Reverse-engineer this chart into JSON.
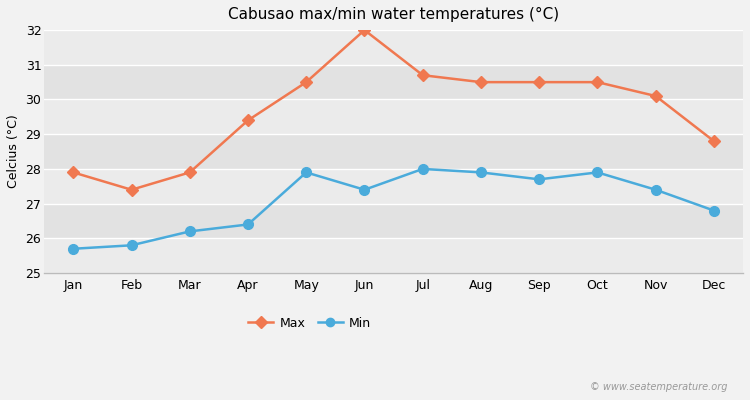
{
  "months": [
    "Jan",
    "Feb",
    "Mar",
    "Apr",
    "May",
    "Jun",
    "Jul",
    "Aug",
    "Sep",
    "Oct",
    "Nov",
    "Dec"
  ],
  "max_temps": [
    27.9,
    27.4,
    27.9,
    29.4,
    30.5,
    32.0,
    30.7,
    30.5,
    30.5,
    30.5,
    30.1,
    28.8
  ],
  "min_temps": [
    25.7,
    25.8,
    26.2,
    26.4,
    27.9,
    27.4,
    28.0,
    27.9,
    27.7,
    27.9,
    27.4,
    26.8
  ],
  "max_color": "#f07850",
  "min_color": "#4aabdb",
  "title": "Cabusao max/min water temperatures (°C)",
  "ylabel": "Celcius (°C)",
  "ylim": [
    25,
    32
  ],
  "yticks": [
    25,
    26,
    27,
    28,
    29,
    30,
    31,
    32
  ],
  "bg_color": "#f2f2f2",
  "plot_bg_light": "#ebebeb",
  "plot_bg_dark": "#e2e2e2",
  "grid_color": "#ffffff",
  "watermark": "© www.seatemperature.org",
  "title_fontsize": 11,
  "tick_fontsize": 9,
  "ylabel_fontsize": 9
}
